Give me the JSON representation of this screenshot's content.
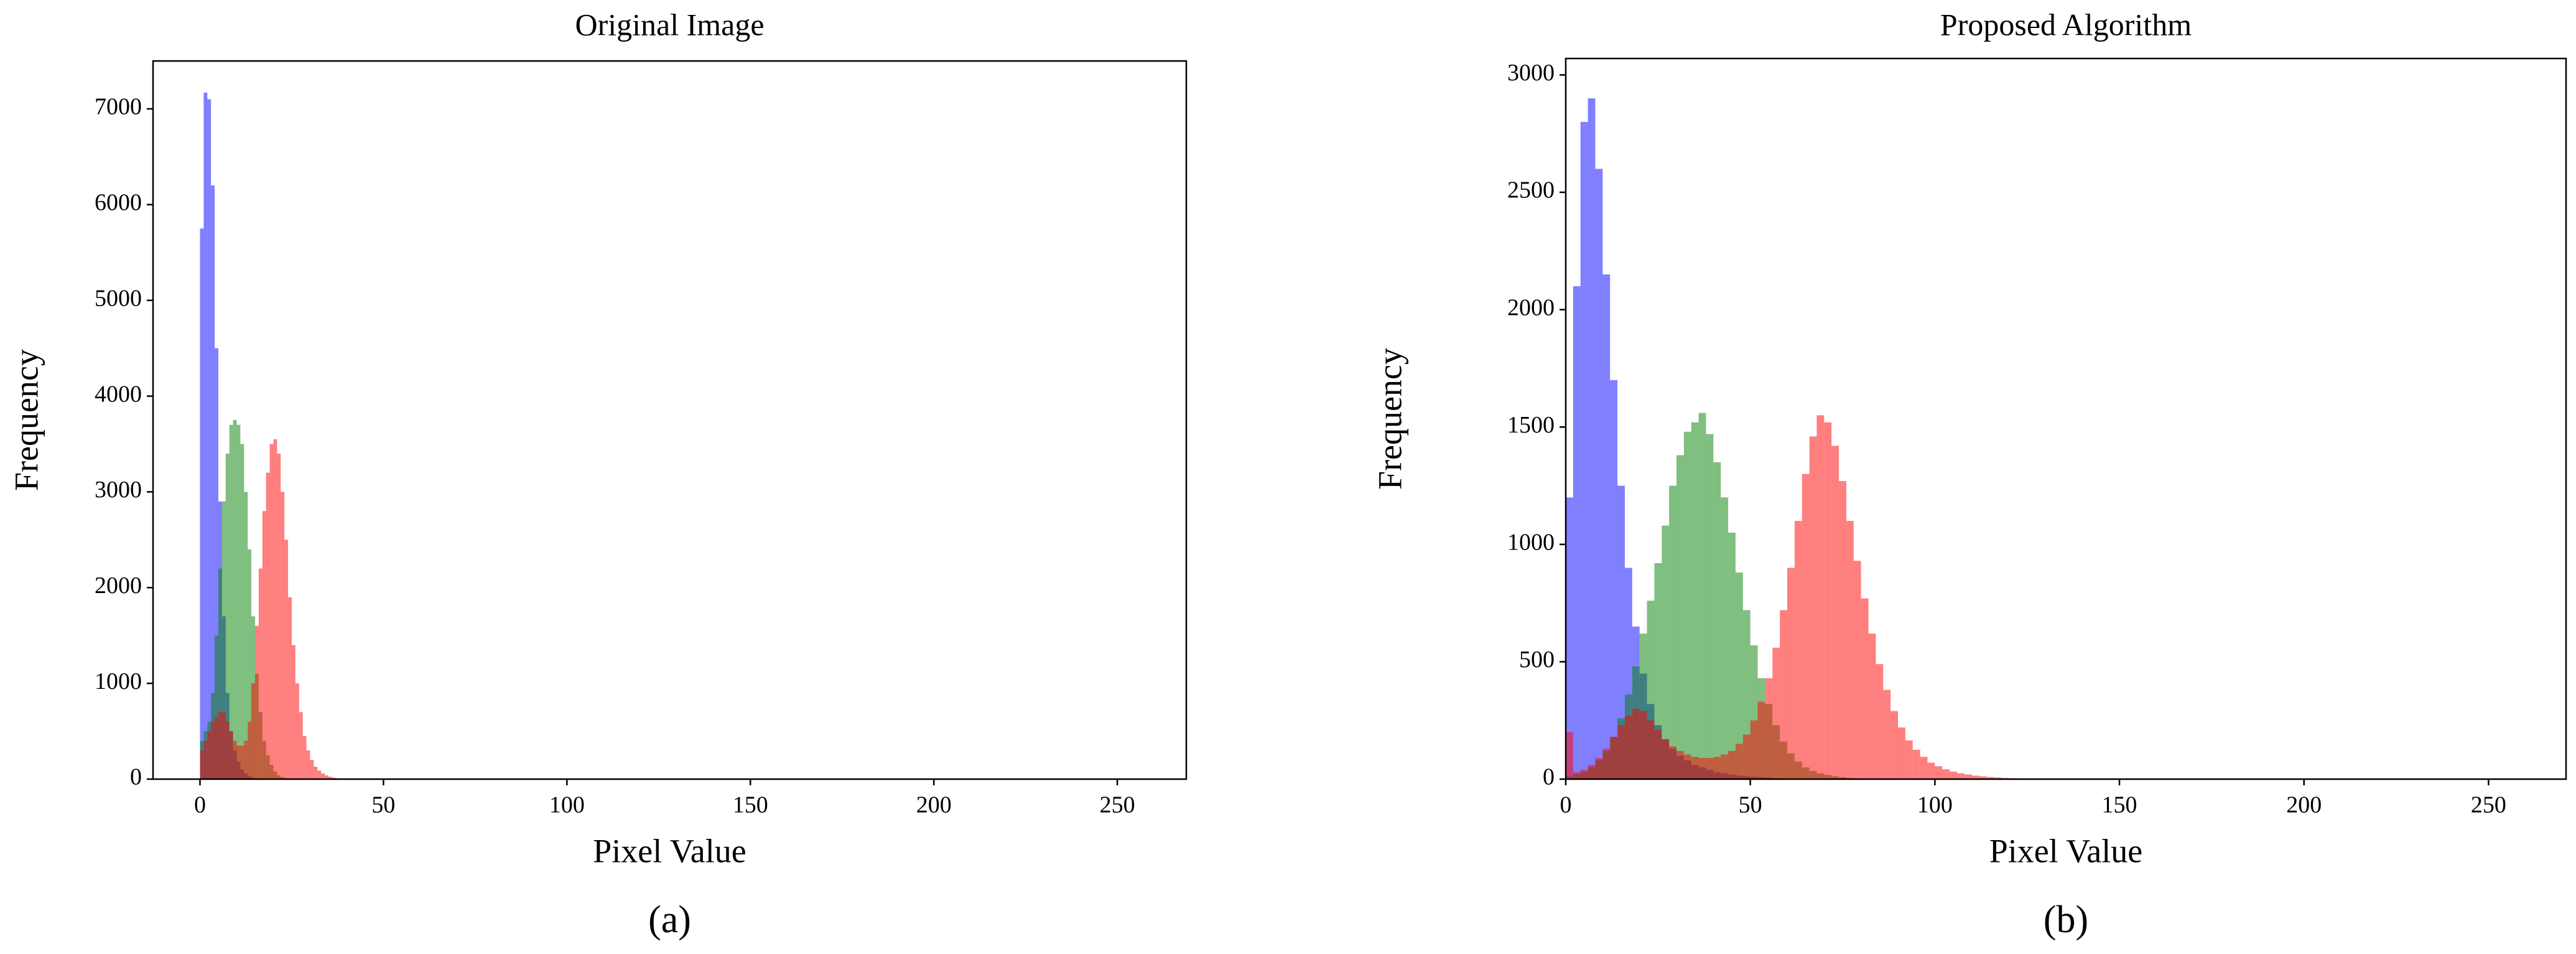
{
  "chart_data": [
    {
      "type": "histogram",
      "title": "Original Image",
      "xlabel": "Pixel Value",
      "ylabel": "Frequency",
      "caption": "(a)",
      "bins": [
        0,
        1,
        2,
        3,
        4,
        5,
        6,
        7,
        8,
        9,
        10,
        11,
        12,
        13,
        14,
        15,
        16,
        17,
        18,
        19,
        20,
        21,
        22,
        23,
        24,
        25,
        26,
        27,
        28,
        29,
        30,
        31,
        32,
        33,
        34,
        35,
        36,
        37,
        38,
        39,
        40
      ],
      "series": [
        {
          "color": "rgba(0,0,255,0.5)",
          "values": [
            5750,
            7170,
            7100,
            6200,
            4500,
            2900,
            1700,
            900,
            500,
            300,
            180,
            100,
            60,
            30,
            15,
            8,
            4,
            2,
            1,
            0,
            0,
            0,
            0,
            0,
            0,
            0,
            0,
            0,
            0,
            0,
            0,
            0,
            0,
            0,
            0,
            0,
            0,
            0,
            0,
            0
          ]
        },
        {
          "color": "rgba(0,128,0,0.5)",
          "values": [
            400,
            500,
            600,
            900,
            1500,
            2200,
            2900,
            3400,
            3700,
            3750,
            3700,
            3500,
            3000,
            2400,
            1700,
            1100,
            700,
            400,
            250,
            150,
            80,
            40,
            20,
            10,
            0,
            0,
            0,
            0,
            0,
            0,
            0,
            0,
            0,
            0,
            0,
            0,
            0,
            0,
            0,
            0
          ]
        },
        {
          "color": "rgba(255,0,0,0.5)",
          "values": [
            300,
            400,
            500,
            600,
            650,
            700,
            700,
            600,
            500,
            400,
            350,
            350,
            400,
            600,
            1000,
            1600,
            2200,
            2800,
            3200,
            3500,
            3550,
            3400,
            3000,
            2500,
            1900,
            1400,
            1000,
            700,
            450,
            300,
            200,
            130,
            90,
            60,
            40,
            25,
            15,
            10,
            5,
            2
          ]
        }
      ],
      "xlim": [
        -12.8,
        268.8
      ],
      "ylim": [
        0,
        7500
      ],
      "xticks": [
        0,
        50,
        100,
        150,
        200,
        250
      ],
      "yticks": [
        0,
        1000,
        2000,
        3000,
        4000,
        5000,
        6000,
        7000
      ]
    },
    {
      "type": "histogram",
      "title": "Proposed Algorithm",
      "xlabel": "Pixel Value",
      "ylabel": "Frequency",
      "caption": "(b)",
      "bins": [
        0,
        2,
        4,
        6,
        8,
        10,
        12,
        14,
        16,
        18,
        20,
        22,
        24,
        26,
        28,
        30,
        32,
        34,
        36,
        38,
        40,
        42,
        44,
        46,
        48,
        50,
        52,
        54,
        56,
        58,
        60,
        62,
        64,
        66,
        68,
        70,
        72,
        74,
        76,
        78,
        80,
        82,
        84,
        86,
        88,
        90,
        92,
        94,
        96,
        98,
        100,
        102,
        104,
        106,
        108,
        110,
        112,
        114,
        116,
        118,
        120,
        122,
        124,
        126,
        128,
        130
      ],
      "series": [
        {
          "color": "rgba(0,0,255,0.5)",
          "values": [
            1200,
            2100,
            2800,
            2900,
            2600,
            2150,
            1700,
            1250,
            900,
            650,
            450,
            320,
            230,
            170,
            130,
            100,
            80,
            60,
            50,
            40,
            30,
            25,
            20,
            15,
            12,
            10,
            8,
            6,
            4,
            3,
            2,
            1,
            0,
            0,
            0,
            0,
            0,
            0,
            0,
            0,
            0,
            0,
            0,
            0,
            0,
            0,
            0,
            0,
            0,
            0,
            0,
            0,
            0,
            0,
            0,
            0,
            0,
            0,
            0,
            0,
            0,
            0,
            0,
            0,
            0
          ]
        },
        {
          "color": "rgba(0,128,0,0.5)",
          "values": [
            10,
            20,
            30,
            50,
            80,
            120,
            180,
            260,
            360,
            480,
            620,
            760,
            920,
            1080,
            1250,
            1380,
            1480,
            1520,
            1560,
            1470,
            1350,
            1200,
            1050,
            880,
            720,
            570,
            430,
            320,
            230,
            160,
            110,
            75,
            50,
            35,
            25,
            18,
            12,
            8,
            5,
            3,
            2,
            1,
            0,
            0,
            0,
            0,
            0,
            0,
            0,
            0,
            0,
            0,
            0,
            0,
            0,
            0,
            0,
            0,
            0,
            0,
            0,
            0,
            0,
            0,
            0
          ]
        },
        {
          "color": "rgba(255,0,0,0.5)",
          "values": [
            200,
            30,
            40,
            60,
            90,
            130,
            180,
            230,
            270,
            300,
            290,
            250,
            210,
            170,
            140,
            120,
            105,
            95,
            90,
            90,
            95,
            105,
            120,
            150,
            190,
            250,
            330,
            430,
            560,
            720,
            900,
            1100,
            1300,
            1460,
            1550,
            1520,
            1420,
            1270,
            1100,
            930,
            770,
            620,
            490,
            380,
            290,
            220,
            165,
            125,
            95,
            70,
            55,
            42,
            32,
            25,
            20,
            15,
            12,
            9,
            7,
            5,
            4,
            3,
            2,
            1,
            1
          ]
        }
      ],
      "xlim": [
        0,
        271
      ],
      "ylim": [
        0,
        3070
      ],
      "xticks": [
        0,
        50,
        100,
        150,
        200,
        250
      ],
      "yticks": [
        0,
        500,
        1000,
        1500,
        2000,
        2500,
        3000
      ]
    }
  ]
}
